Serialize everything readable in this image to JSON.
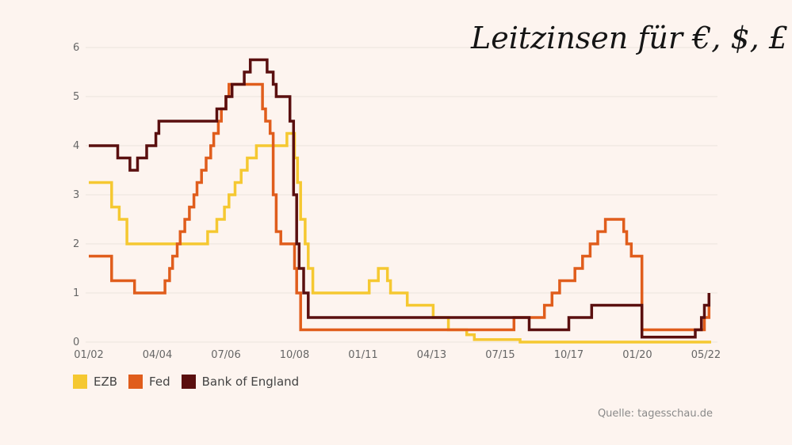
{
  "title": "Leitzinsen für €, $, £",
  "source": "Quelle: tagesschau.de",
  "colors": {
    "ezb": "#f5c831",
    "fed": "#e05d1c",
    "boe": "#5a0f0f",
    "grid": "#ebe3dd",
    "background": "#fdf4ef"
  },
  "chart_data": {
    "type": "line",
    "title": "Leitzinsen für €, $, £",
    "ylim": [
      0,
      6
    ],
    "xlim": [
      2002.0,
      2022.42
    ],
    "yticks": [
      "0",
      "1",
      "2",
      "3",
      "4",
      "5",
      "6"
    ],
    "xticks": [
      {
        "x": 2002.0,
        "pre": "01/",
        "bold": "02"
      },
      {
        "x": 2004.25,
        "pre": "04/04",
        "bold": ""
      },
      {
        "x": 2006.5,
        "pre": "07/06",
        "bold": ""
      },
      {
        "x": 2008.75,
        "pre": "10/08",
        "bold": ""
      },
      {
        "x": 2011.0,
        "pre": "01/11",
        "bold": ""
      },
      {
        "x": 2013.25,
        "pre": "04/13",
        "bold": ""
      },
      {
        "x": 2015.5,
        "pre": "07/15",
        "bold": ""
      },
      {
        "x": 2017.75,
        "pre": "10/17",
        "bold": ""
      },
      {
        "x": 2020.0,
        "pre": "01/20",
        "bold": ""
      },
      {
        "x": 2022.25,
        "pre": "05/",
        "bold": "22"
      }
    ],
    "legend": "bottom-left",
    "series": [
      {
        "name": "EZB",
        "points": [
          [
            2002.0,
            3.25
          ],
          [
            2002.75,
            3.25
          ],
          [
            2002.75,
            2.75
          ],
          [
            2003.0,
            2.75
          ],
          [
            2003.0,
            2.5
          ],
          [
            2003.25,
            2.5
          ],
          [
            2003.25,
            2.0
          ],
          [
            2005.9,
            2.0
          ],
          [
            2005.9,
            2.25
          ],
          [
            2006.2,
            2.25
          ],
          [
            2006.2,
            2.5
          ],
          [
            2006.45,
            2.5
          ],
          [
            2006.45,
            2.75
          ],
          [
            2006.6,
            2.75
          ],
          [
            2006.6,
            3.0
          ],
          [
            2006.8,
            3.0
          ],
          [
            2006.8,
            3.25
          ],
          [
            2007.0,
            3.25
          ],
          [
            2007.0,
            3.5
          ],
          [
            2007.2,
            3.5
          ],
          [
            2007.2,
            3.75
          ],
          [
            2007.5,
            3.75
          ],
          [
            2007.5,
            4.0
          ],
          [
            2008.5,
            4.0
          ],
          [
            2008.5,
            4.25
          ],
          [
            2008.75,
            4.25
          ],
          [
            2008.75,
            3.75
          ],
          [
            2008.85,
            3.75
          ],
          [
            2008.85,
            3.25
          ],
          [
            2008.95,
            3.25
          ],
          [
            2008.95,
            2.5
          ],
          [
            2009.1,
            2.5
          ],
          [
            2009.1,
            2.0
          ],
          [
            2009.2,
            2.0
          ],
          [
            2009.2,
            1.5
          ],
          [
            2009.35,
            1.5
          ],
          [
            2009.35,
            1.0
          ],
          [
            2011.2,
            1.0
          ],
          [
            2011.2,
            1.25
          ],
          [
            2011.5,
            1.25
          ],
          [
            2011.5,
            1.5
          ],
          [
            2011.8,
            1.5
          ],
          [
            2011.8,
            1.25
          ],
          [
            2011.9,
            1.25
          ],
          [
            2011.9,
            1.0
          ],
          [
            2012.45,
            1.0
          ],
          [
            2012.45,
            0.75
          ],
          [
            2013.3,
            0.75
          ],
          [
            2013.3,
            0.5
          ],
          [
            2013.8,
            0.5
          ],
          [
            2013.8,
            0.25
          ],
          [
            2014.4,
            0.25
          ],
          [
            2014.4,
            0.15
          ],
          [
            2014.65,
            0.15
          ],
          [
            2014.65,
            0.05
          ],
          [
            2016.15,
            0.05
          ],
          [
            2016.15,
            0.0
          ],
          [
            2022.42,
            0.0
          ]
        ]
      },
      {
        "name": "Fed",
        "points": [
          [
            2002.0,
            1.75
          ],
          [
            2002.75,
            1.75
          ],
          [
            2002.75,
            1.25
          ],
          [
            2003.5,
            1.25
          ],
          [
            2003.5,
            1.0
          ],
          [
            2004.5,
            1.0
          ],
          [
            2004.5,
            1.25
          ],
          [
            2004.65,
            1.25
          ],
          [
            2004.65,
            1.5
          ],
          [
            2004.75,
            1.5
          ],
          [
            2004.75,
            1.75
          ],
          [
            2004.9,
            1.75
          ],
          [
            2004.9,
            2.0
          ],
          [
            2005.0,
            2.0
          ],
          [
            2005.0,
            2.25
          ],
          [
            2005.15,
            2.25
          ],
          [
            2005.15,
            2.5
          ],
          [
            2005.3,
            2.5
          ],
          [
            2005.3,
            2.75
          ],
          [
            2005.45,
            2.75
          ],
          [
            2005.45,
            3.0
          ],
          [
            2005.55,
            3.0
          ],
          [
            2005.55,
            3.25
          ],
          [
            2005.7,
            3.25
          ],
          [
            2005.7,
            3.5
          ],
          [
            2005.85,
            3.5
          ],
          [
            2005.85,
            3.75
          ],
          [
            2006.0,
            3.75
          ],
          [
            2006.0,
            4.0
          ],
          [
            2006.1,
            4.0
          ],
          [
            2006.1,
            4.25
          ],
          [
            2006.25,
            4.25
          ],
          [
            2006.25,
            4.5
          ],
          [
            2006.35,
            4.5
          ],
          [
            2006.35,
            4.75
          ],
          [
            2006.5,
            4.75
          ],
          [
            2006.5,
            5.0
          ],
          [
            2006.6,
            5.0
          ],
          [
            2006.6,
            5.25
          ],
          [
            2007.7,
            5.25
          ],
          [
            2007.7,
            4.75
          ],
          [
            2007.8,
            4.75
          ],
          [
            2007.8,
            4.5
          ],
          [
            2007.95,
            4.5
          ],
          [
            2007.95,
            4.25
          ],
          [
            2008.05,
            4.25
          ],
          [
            2008.05,
            3.0
          ],
          [
            2008.15,
            3.0
          ],
          [
            2008.15,
            2.25
          ],
          [
            2008.3,
            2.25
          ],
          [
            2008.3,
            2.0
          ],
          [
            2008.75,
            2.0
          ],
          [
            2008.75,
            1.5
          ],
          [
            2008.82,
            1.5
          ],
          [
            2008.82,
            1.0
          ],
          [
            2008.95,
            1.0
          ],
          [
            2008.95,
            0.25
          ],
          [
            2015.95,
            0.25
          ],
          [
            2015.95,
            0.5
          ],
          [
            2016.95,
            0.5
          ],
          [
            2016.95,
            0.75
          ],
          [
            2017.2,
            0.75
          ],
          [
            2017.2,
            1.0
          ],
          [
            2017.45,
            1.0
          ],
          [
            2017.45,
            1.25
          ],
          [
            2017.95,
            1.25
          ],
          [
            2017.95,
            1.5
          ],
          [
            2018.2,
            1.5
          ],
          [
            2018.2,
            1.75
          ],
          [
            2018.45,
            1.75
          ],
          [
            2018.45,
            2.0
          ],
          [
            2018.7,
            2.0
          ],
          [
            2018.7,
            2.25
          ],
          [
            2018.95,
            2.25
          ],
          [
            2018.95,
            2.5
          ],
          [
            2019.55,
            2.5
          ],
          [
            2019.55,
            2.25
          ],
          [
            2019.65,
            2.25
          ],
          [
            2019.65,
            2.0
          ],
          [
            2019.8,
            2.0
          ],
          [
            2019.8,
            1.75
          ],
          [
            2020.15,
            1.75
          ],
          [
            2020.15,
            0.25
          ],
          [
            2022.2,
            0.25
          ],
          [
            2022.2,
            0.5
          ],
          [
            2022.35,
            0.5
          ],
          [
            2022.35,
            1.0
          ]
        ]
      },
      {
        "name": "Bank of England",
        "points": [
          [
            2002.0,
            4.0
          ],
          [
            2002.95,
            4.0
          ],
          [
            2002.95,
            3.75
          ],
          [
            2003.35,
            3.75
          ],
          [
            2003.35,
            3.5
          ],
          [
            2003.6,
            3.5
          ],
          [
            2003.6,
            3.75
          ],
          [
            2003.9,
            3.75
          ],
          [
            2003.9,
            4.0
          ],
          [
            2004.2,
            4.0
          ],
          [
            2004.2,
            4.25
          ],
          [
            2004.3,
            4.25
          ],
          [
            2004.3,
            4.5
          ],
          [
            2006.2,
            4.5
          ],
          [
            2006.2,
            4.75
          ],
          [
            2006.5,
            4.75
          ],
          [
            2006.5,
            5.0
          ],
          [
            2006.7,
            5.0
          ],
          [
            2006.7,
            5.25
          ],
          [
            2007.1,
            5.25
          ],
          [
            2007.1,
            5.5
          ],
          [
            2007.3,
            5.5
          ],
          [
            2007.3,
            5.75
          ],
          [
            2007.85,
            5.75
          ],
          [
            2007.85,
            5.5
          ],
          [
            2008.05,
            5.5
          ],
          [
            2008.05,
            5.25
          ],
          [
            2008.15,
            5.25
          ],
          [
            2008.15,
            5.0
          ],
          [
            2008.6,
            5.0
          ],
          [
            2008.6,
            4.5
          ],
          [
            2008.72,
            4.5
          ],
          [
            2008.72,
            3.0
          ],
          [
            2008.82,
            3.0
          ],
          [
            2008.82,
            2.0
          ],
          [
            2008.9,
            2.0
          ],
          [
            2008.9,
            1.5
          ],
          [
            2009.05,
            1.5
          ],
          [
            2009.05,
            1.0
          ],
          [
            2009.2,
            1.0
          ],
          [
            2009.2,
            0.5
          ],
          [
            2016.45,
            0.5
          ],
          [
            2016.45,
            0.25
          ],
          [
            2017.75,
            0.25
          ],
          [
            2017.75,
            0.5
          ],
          [
            2018.5,
            0.5
          ],
          [
            2018.5,
            0.75
          ],
          [
            2020.15,
            0.75
          ],
          [
            2020.15,
            0.1
          ],
          [
            2021.9,
            0.1
          ],
          [
            2021.9,
            0.25
          ],
          [
            2022.1,
            0.25
          ],
          [
            2022.1,
            0.5
          ],
          [
            2022.2,
            0.5
          ],
          [
            2022.2,
            0.75
          ],
          [
            2022.35,
            0.75
          ],
          [
            2022.35,
            1.0
          ]
        ]
      }
    ]
  }
}
